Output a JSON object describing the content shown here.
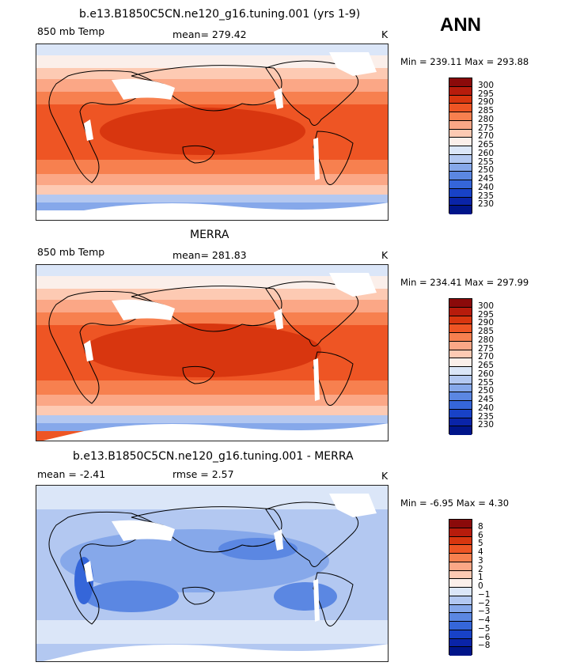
{
  "season": "ANN",
  "panels": [
    {
      "title": "b.e13.B1850C5CN.ne120_g16.tuning.001 (yrs 1-9)",
      "left_label": "850 mb Temp",
      "center_label": "mean= 279.42",
      "units": "K",
      "minmax": "Min = 239.11 Max = 293.88"
    },
    {
      "title": "MERRA",
      "left_label": "850 mb Temp",
      "center_label": "mean= 281.83",
      "units": "K",
      "minmax": "Min = 234.41 Max = 297.99"
    },
    {
      "title": "b.e13.B1850C5CN.ne120_g16.tuning.001 - MERRA",
      "left_label": "mean =   -2.41",
      "center_label": "rmse =    2.57",
      "units": "K",
      "minmax": "Min =   -6.95 Max =    4.30"
    }
  ],
  "colorbars": {
    "temp": {
      "labels": [
        "300",
        "295",
        "290",
        "285",
        "280",
        "275",
        "270",
        "265",
        "260",
        "255",
        "250",
        "245",
        "240",
        "235",
        "230"
      ],
      "colors": [
        "#8b0a0a",
        "#b71c0c",
        "#d8360f",
        "#ee5524",
        "#f7804f",
        "#fba786",
        "#fdcab3",
        "#fbefea",
        "#dbe6f8",
        "#b3c8f1",
        "#86a8ea",
        "#5b87e2",
        "#3566d9",
        "#1842c7",
        "#0a24a8",
        "#00158a"
      ]
    },
    "diff": {
      "labels": [
        "8",
        "6",
        "5",
        "4",
        "3",
        "2",
        "1",
        "0",
        "−1",
        "−2",
        "−3",
        "−4",
        "−5",
        "−6",
        "−8"
      ],
      "colors": [
        "#8b0a0a",
        "#b71c0c",
        "#d8360f",
        "#ee5524",
        "#f7804f",
        "#fba786",
        "#fdcab3",
        "#fbefea",
        "#dbe6f8",
        "#b3c8f1",
        "#86a8ea",
        "#5b87e2",
        "#3566d9",
        "#1842c7",
        "#0a24a8",
        "#00158a"
      ]
    }
  }
}
